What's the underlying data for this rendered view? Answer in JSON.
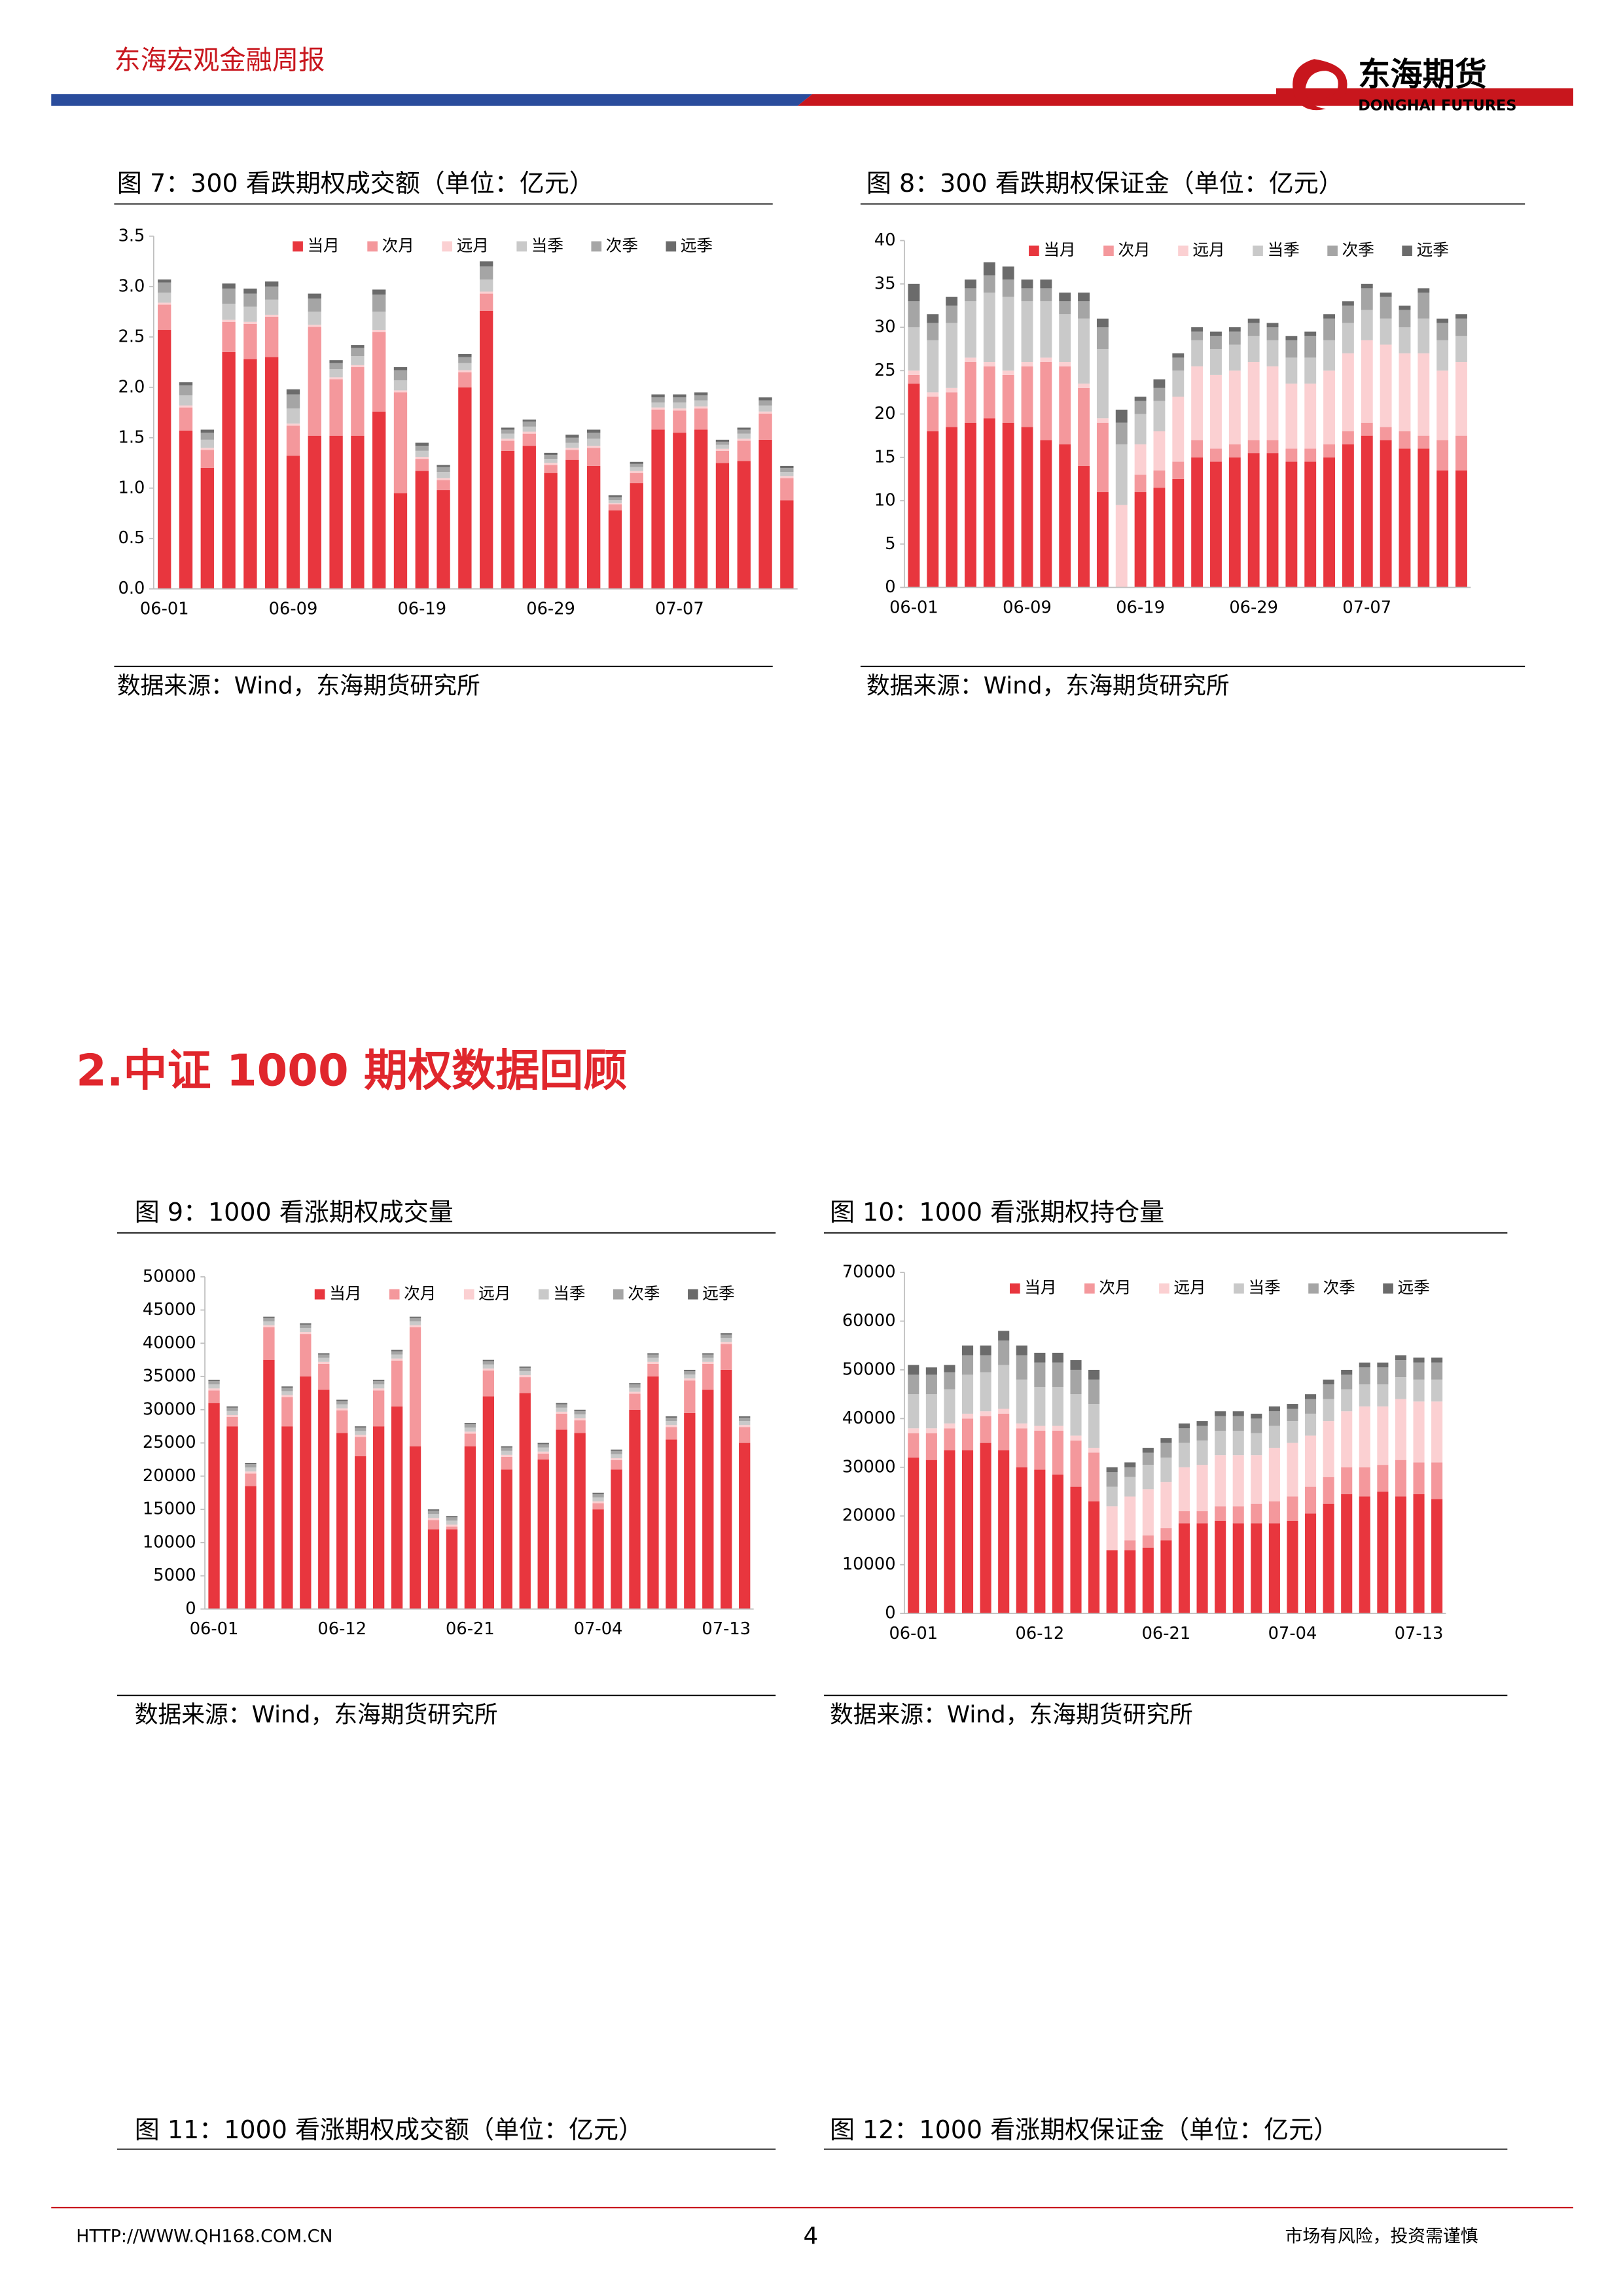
{
  "header": {
    "report": "东海宏观金融周报",
    "logo_cn": "东海期货",
    "logo_en": "DONGHAI FUTURES"
  },
  "section_title": "2.中证 1000 期权数据回顾",
  "chart_data": [
    {
      "type": "stacked_bar",
      "title": "图 7：300 看跌期权成交额（单位：亿元）",
      "source": "数据来源：Wind，东海期货研究所",
      "categories": [
        "06-01",
        null,
        null,
        null,
        null,
        null,
        "06-09",
        null,
        null,
        null,
        null,
        null,
        "06-19",
        null,
        null,
        null,
        null,
        null,
        "06-29",
        null,
        null,
        null,
        null,
        null,
        "07-07",
        null,
        null,
        null,
        null,
        null
      ],
      "ylim": [
        0,
        3.5
      ],
      "yticks": [
        {
          "value": 0,
          "label": "0.0"
        },
        0.5,
        {
          "value": 1,
          "label": "1.0"
        },
        1.5,
        {
          "value": 2,
          "label": "2.0"
        },
        2.5,
        {
          "value": 3,
          "label": "3.0"
        },
        3.5
      ],
      "grid": false,
      "series": [
        {
          "name": "当月",
          "color": "#e8363e",
          "values": [
            2.57,
            1.57,
            1.2,
            2.35,
            2.28,
            2.3,
            1.32,
            1.52,
            1.52,
            1.52,
            1.76,
            0.95,
            1.17,
            0.98,
            2.0,
            2.76,
            1.37,
            1.42,
            1.15,
            1.28,
            1.22,
            0.78,
            1.05,
            1.58,
            1.55,
            1.58,
            1.25,
            1.27,
            1.48,
            0.88
          ]
        },
        {
          "name": "次月",
          "color": "#f4989c",
          "values": [
            0.25,
            0.23,
            0.18,
            0.3,
            0.35,
            0.4,
            0.3,
            1.08,
            0.56,
            0.68,
            0.79,
            1.0,
            0.12,
            0.1,
            0.15,
            0.17,
            0.1,
            0.12,
            0.08,
            0.1,
            0.18,
            0.06,
            0.1,
            0.2,
            0.22,
            0.21,
            0.12,
            0.2,
            0.26,
            0.22
          ]
        },
        {
          "name": "远月",
          "color": "#fbd0d2",
          "values": [
            0.02,
            0.02,
            0.02,
            0.02,
            0.02,
            0.02,
            0.02,
            0.02,
            0.02,
            0.02,
            0.02,
            0.02,
            0.02,
            0.02,
            0.02,
            0.02,
            0.02,
            0.02,
            0.02,
            0.02,
            0.02,
            0.01,
            0.02,
            0.02,
            0.02,
            0.02,
            0.02,
            0.02,
            0.02,
            0.02
          ]
        },
        {
          "name": "当季",
          "color": "#c9c9c9",
          "values": [
            0.1,
            0.1,
            0.08,
            0.16,
            0.15,
            0.15,
            0.15,
            0.13,
            0.08,
            0.09,
            0.18,
            0.1,
            0.06,
            0.06,
            0.07,
            0.12,
            0.05,
            0.05,
            0.04,
            0.05,
            0.07,
            0.03,
            0.04,
            0.05,
            0.06,
            0.06,
            0.04,
            0.05,
            0.06,
            0.04
          ]
        },
        {
          "name": "次季",
          "color": "#a5a5a5",
          "values": [
            0.1,
            0.1,
            0.07,
            0.15,
            0.13,
            0.13,
            0.14,
            0.13,
            0.06,
            0.08,
            0.17,
            0.1,
            0.05,
            0.05,
            0.06,
            0.13,
            0.04,
            0.05,
            0.04,
            0.05,
            0.06,
            0.03,
            0.03,
            0.05,
            0.05,
            0.05,
            0.03,
            0.04,
            0.05,
            0.04
          ]
        },
        {
          "name": "远季",
          "color": "#6b6b6b",
          "values": [
            0.03,
            0.03,
            0.03,
            0.05,
            0.05,
            0.05,
            0.05,
            0.05,
            0.03,
            0.03,
            0.05,
            0.03,
            0.03,
            0.02,
            0.03,
            0.05,
            0.02,
            0.02,
            0.02,
            0.03,
            0.03,
            0.02,
            0.02,
            0.03,
            0.03,
            0.03,
            0.02,
            0.02,
            0.03,
            0.02
          ]
        }
      ]
    },
    {
      "type": "stacked_bar",
      "title": "图 8：300 看跌期权保证金（单位：亿元）",
      "source": "数据来源：Wind，东海期货研究所",
      "categories": [
        "06-01",
        null,
        null,
        null,
        null,
        null,
        "06-09",
        null,
        null,
        null,
        null,
        null,
        "06-19",
        null,
        null,
        null,
        null,
        null,
        "06-29",
        null,
        null,
        null,
        null,
        null,
        "07-07",
        null,
        null,
        null,
        null,
        null
      ],
      "ylim": [
        0,
        40
      ],
      "yticks": [
        0,
        5,
        10,
        15,
        20,
        25,
        30,
        35,
        40
      ],
      "grid": false,
      "series": [
        {
          "name": "当月",
          "color": "#e8363e",
          "values": [
            23.5,
            18,
            18.5,
            19,
            19.5,
            19,
            18.5,
            17,
            16.5,
            14,
            11,
            0,
            11,
            11.5,
            12.5,
            15,
            14.5,
            15,
            15.5,
            15.5,
            14.5,
            14.5,
            15,
            16.5,
            17.5,
            17,
            16,
            16,
            13.5,
            13.5
          ]
        },
        {
          "name": "次月",
          "color": "#f4989c",
          "values": [
            1,
            4,
            4,
            7,
            6,
            5.5,
            7,
            9,
            9,
            9,
            8,
            0,
            2,
            2,
            2,
            2,
            1.5,
            1.5,
            1.5,
            1.5,
            1.5,
            1.5,
            1.5,
            1.5,
            1.5,
            1.5,
            2,
            1.5,
            3.5,
            4
          ]
        },
        {
          "name": "远月",
          "color": "#fbd0d2",
          "values": [
            0.5,
            0.5,
            0.5,
            0.5,
            0.5,
            0.5,
            0.5,
            0.5,
            0.5,
            0.5,
            0.5,
            9.5,
            3.5,
            4.5,
            7.5,
            8.5,
            8.5,
            8.5,
            9,
            8.5,
            7.5,
            7.5,
            8.5,
            9,
            9.5,
            9.5,
            9,
            9.5,
            8,
            8.5
          ]
        },
        {
          "name": "当季",
          "color": "#c9c9c9",
          "values": [
            5,
            6,
            7.5,
            6.5,
            8,
            8.5,
            7,
            6.5,
            5.5,
            7.5,
            8,
            7,
            3.5,
            3.5,
            3,
            3,
            3,
            3,
            3,
            3,
            3,
            3,
            3.5,
            3.5,
            3.5,
            3,
            3,
            4,
            3.5,
            3
          ]
        },
        {
          "name": "次季",
          "color": "#a5a5a5",
          "values": [
            3,
            2,
            2,
            1.5,
            2,
            2,
            1.5,
            1.5,
            1.5,
            2,
            2.5,
            2.5,
            1.5,
            1.5,
            1.5,
            1,
            1.5,
            1.5,
            1.5,
            1.5,
            2,
            2.5,
            2.5,
            2,
            2.5,
            2.5,
            2,
            3,
            2,
            2
          ]
        },
        {
          "name": "远季",
          "color": "#6b6b6b",
          "values": [
            2,
            1,
            1,
            1,
            1.5,
            1.5,
            1,
            1,
            1,
            1,
            1,
            1.5,
            0.5,
            1,
            0.5,
            0.5,
            0.5,
            0.5,
            0.5,
            0.5,
            0.5,
            0.5,
            0.5,
            0.5,
            0.5,
            0.5,
            0.5,
            0.5,
            0.5,
            0.5
          ]
        }
      ]
    },
    {
      "type": "stacked_bar",
      "title": "图 9：1000 看涨期权成交量",
      "source": "数据来源：Wind，东海期货研究所",
      "categories": [
        "06-01",
        null,
        null,
        null,
        null,
        null,
        null,
        "06-12",
        null,
        null,
        null,
        null,
        null,
        null,
        "06-21",
        null,
        null,
        null,
        null,
        null,
        null,
        "07-04",
        null,
        null,
        null,
        null,
        null,
        null,
        "07-13",
        null
      ],
      "ylim": [
        0,
        50000
      ],
      "yticks": [
        0,
        5000,
        10000,
        15000,
        20000,
        25000,
        30000,
        35000,
        40000,
        45000,
        50000
      ],
      "grid": false,
      "series": [
        {
          "name": "当月",
          "color": "#e8363e",
          "values": [
            31000,
            27500,
            18500,
            37500,
            27500,
            35000,
            33000,
            26500,
            23000,
            27500,
            30500,
            24500,
            12000,
            12000,
            24500,
            32000,
            21000,
            32500,
            22500,
            27000,
            26500,
            15000,
            21000,
            30000,
            35000,
            25500,
            29500,
            33000,
            36000,
            25000
          ]
        },
        {
          "name": "次月",
          "color": "#f4989c",
          "values": [
            1900,
            1400,
            1900,
            4900,
            4400,
            6400,
            3900,
            3400,
            2900,
            5400,
            6900,
            17900,
            1400,
            400,
            1900,
            3900,
            1900,
            2400,
            900,
            2400,
            1900,
            900,
            1400,
            2400,
            1900,
            1900,
            4900,
            3900,
            3900,
            2400
          ]
        },
        {
          "name": "远月",
          "color": "#fbd0d2",
          "values": [
            300,
            300,
            300,
            300,
            300,
            300,
            300,
            300,
            300,
            300,
            300,
            300,
            300,
            300,
            300,
            300,
            300,
            300,
            300,
            300,
            300,
            300,
            300,
            300,
            300,
            300,
            300,
            300,
            300,
            300
          ]
        },
        {
          "name": "当季",
          "color": "#c9c9c9",
          "values": [
            600,
            600,
            600,
            600,
            600,
            600,
            600,
            600,
            600,
            600,
            600,
            600,
            600,
            600,
            600,
            600,
            600,
            600,
            600,
            600,
            600,
            600,
            600,
            600,
            600,
            600,
            600,
            600,
            600,
            600
          ]
        },
        {
          "name": "次季",
          "color": "#a5a5a5",
          "values": [
            500,
            500,
            500,
            500,
            500,
            500,
            500,
            500,
            500,
            500,
            500,
            500,
            500,
            500,
            500,
            500,
            500,
            500,
            500,
            500,
            500,
            500,
            500,
            500,
            500,
            500,
            500,
            500,
            500,
            500
          ]
        },
        {
          "name": "远季",
          "color": "#6b6b6b",
          "values": [
            200,
            200,
            200,
            200,
            200,
            200,
            200,
            200,
            200,
            200,
            200,
            200,
            200,
            200,
            200,
            200,
            200,
            200,
            200,
            200,
            200,
            200,
            200,
            200,
            200,
            200,
            200,
            200,
            200,
            200
          ]
        }
      ]
    },
    {
      "type": "stacked_bar",
      "title": "图 10：1000 看涨期权持仓量",
      "source": "数据来源：Wind，东海期货研究所",
      "categories": [
        "06-01",
        null,
        null,
        null,
        null,
        null,
        null,
        "06-12",
        null,
        null,
        null,
        null,
        null,
        null,
        "06-21",
        null,
        null,
        null,
        null,
        null,
        null,
        "07-04",
        null,
        null,
        null,
        null,
        null,
        null,
        "07-13",
        null
      ],
      "ylim": [
        0,
        70000
      ],
      "yticks": [
        0,
        10000,
        20000,
        30000,
        40000,
        50000,
        60000,
        70000
      ],
      "grid": false,
      "series": [
        {
          "name": "当月",
          "color": "#e8363e",
          "values": [
            32000,
            31500,
            33500,
            33500,
            35000,
            33500,
            30000,
            29500,
            28500,
            26000,
            23000,
            13000,
            13000,
            13500,
            15000,
            18500,
            18500,
            19000,
            18500,
            18500,
            18500,
            19000,
            20500,
            22500,
            24500,
            24000,
            25000,
            24000,
            24500,
            23500
          ]
        },
        {
          "name": "次月",
          "color": "#f4989c",
          "values": [
            5000,
            5500,
            4500,
            6500,
            5500,
            7500,
            8000,
            8000,
            9000,
            9500,
            10000,
            0,
            2000,
            2500,
            2500,
            2500,
            2500,
            3000,
            3500,
            4000,
            4500,
            5000,
            5500,
            5500,
            5500,
            6000,
            5500,
            7500,
            6500,
            7500
          ]
        },
        {
          "name": "远月",
          "color": "#fbd0d2",
          "values": [
            1000,
            1000,
            1000,
            1000,
            1000,
            1000,
            1000,
            1000,
            1000,
            1000,
            1000,
            9000,
            9000,
            9500,
            9500,
            9000,
            9500,
            10500,
            10500,
            10000,
            11000,
            11000,
            10500,
            11500,
            11500,
            12500,
            12000,
            12500,
            12500,
            12500
          ]
        },
        {
          "name": "当季",
          "color": "#c9c9c9",
          "values": [
            7000,
            7000,
            7000,
            8000,
            8000,
            9000,
            9000,
            8000,
            8000,
            8500,
            9000,
            4000,
            4000,
            5000,
            5000,
            5000,
            5000,
            5000,
            5000,
            4500,
            4500,
            4500,
            4500,
            4500,
            4500,
            4500,
            4500,
            4500,
            4500,
            4500
          ]
        },
        {
          "name": "次季",
          "color": "#a5a5a5",
          "values": [
            4000,
            4000,
            3500,
            4000,
            3500,
            5000,
            5000,
            5000,
            5000,
            5000,
            5000,
            3000,
            2000,
            2500,
            3000,
            3000,
            3000,
            3000,
            3000,
            3000,
            3000,
            2500,
            3000,
            3000,
            3000,
            3500,
            3500,
            3500,
            3500,
            3500
          ]
        },
        {
          "name": "远季",
          "color": "#6b6b6b",
          "values": [
            2000,
            1500,
            1500,
            2000,
            2000,
            2000,
            2000,
            2000,
            2000,
            2000,
            2000,
            1000,
            1000,
            1000,
            1000,
            1000,
            1000,
            1000,
            1000,
            1000,
            1000,
            1000,
            1000,
            1000,
            1000,
            1000,
            1000,
            1000,
            1000,
            1000
          ]
        }
      ]
    }
  ],
  "figure_titles": [
    "图 11：1000 看涨期权成交额（单位：亿元）",
    "图 12：1000 看涨期权保证金（单位：亿元）"
  ],
  "footer": {
    "url": "HTTP://WWW.QH168.COM.CN",
    "page": 4,
    "disclaimer": "市场有风险，投资需谨慎"
  }
}
